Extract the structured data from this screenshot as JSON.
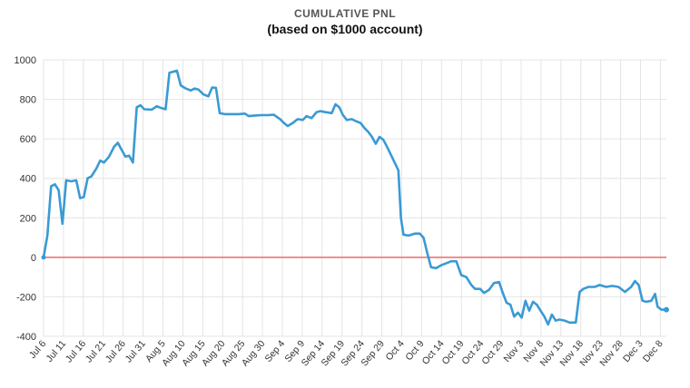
{
  "chart_data": {
    "type": "line",
    "title": "CUMULATIVE PNL",
    "subtitle": "(based on $1000 account)",
    "xlabel": "",
    "ylabel": "",
    "ylim": [
      -400,
      1000
    ],
    "yticks": [
      -400,
      -200,
      0,
      200,
      400,
      600,
      800,
      1000
    ],
    "x_tick_labels": [
      "Jul 6",
      "Jul 11",
      "Jul 16",
      "Jul 21",
      "Jul 26",
      "Jul 31",
      "Aug 5",
      "Aug 10",
      "Aug 15",
      "Aug 20",
      "Aug 25",
      "Aug 30",
      "Sep 4",
      "Sep 9",
      "Sep 14",
      "Sep 19",
      "Sep 24",
      "Sep 29",
      "Oct 4",
      "Oct 9",
      "Oct 14",
      "Oct 19",
      "Oct 24",
      "Oct 29",
      "Nov 3",
      "Nov 8",
      "Nov 13",
      "Nov 18",
      "Nov 23",
      "Nov 28",
      "Dec 3",
      "Dec 8"
    ],
    "grid": true,
    "reference_line": {
      "y": 0,
      "color": "#ef7f7f"
    },
    "series": [
      {
        "color": "#3a9ad4",
        "points": [
          [
            0,
            0
          ],
          [
            0.6,
            110
          ],
          [
            1.2,
            360
          ],
          [
            1.8,
            370
          ],
          [
            2.4,
            340
          ],
          [
            3.0,
            170
          ],
          [
            3.6,
            390
          ],
          [
            4.4,
            385
          ],
          [
            5.2,
            390
          ],
          [
            5.8,
            300
          ],
          [
            6.4,
            305
          ],
          [
            7.0,
            400
          ],
          [
            7.6,
            410
          ],
          [
            8.4,
            450
          ],
          [
            9.0,
            490
          ],
          [
            9.6,
            480
          ],
          [
            10.4,
            510
          ],
          [
            11.2,
            560
          ],
          [
            11.8,
            580
          ],
          [
            12.4,
            545
          ],
          [
            13.0,
            510
          ],
          [
            13.6,
            515
          ],
          [
            14.2,
            480
          ],
          [
            14.8,
            760
          ],
          [
            15.4,
            770
          ],
          [
            16.0,
            750
          ],
          [
            17.2,
            748
          ],
          [
            18.0,
            765
          ],
          [
            18.8,
            755
          ],
          [
            19.4,
            750
          ],
          [
            20.0,
            935
          ],
          [
            20.6,
            940
          ],
          [
            21.2,
            945
          ],
          [
            21.8,
            870
          ],
          [
            22.6,
            855
          ],
          [
            23.4,
            845
          ],
          [
            24.0,
            855
          ],
          [
            24.6,
            850
          ],
          [
            25.4,
            825
          ],
          [
            26.2,
            815
          ],
          [
            26.8,
            860
          ],
          [
            27.4,
            858
          ],
          [
            28.0,
            730
          ],
          [
            28.8,
            725
          ],
          [
            29.6,
            725
          ],
          [
            31.0,
            725
          ],
          [
            32.0,
            728
          ],
          [
            32.6,
            715
          ],
          [
            33.6,
            718
          ],
          [
            34.6,
            720
          ],
          [
            35.6,
            720
          ],
          [
            36.6,
            722
          ],
          [
            37.6,
            700
          ],
          [
            38.2,
            680
          ],
          [
            38.8,
            665
          ],
          [
            39.6,
            680
          ],
          [
            40.4,
            700
          ],
          [
            41.2,
            695
          ],
          [
            41.8,
            715
          ],
          [
            42.6,
            705
          ],
          [
            43.4,
            735
          ],
          [
            44.0,
            740
          ],
          [
            44.8,
            735
          ],
          [
            45.8,
            730
          ],
          [
            46.4,
            775
          ],
          [
            47.0,
            760
          ],
          [
            47.6,
            720
          ],
          [
            48.2,
            695
          ],
          [
            49.0,
            700
          ],
          [
            49.6,
            690
          ],
          [
            50.4,
            680
          ],
          [
            51.0,
            655
          ],
          [
            51.6,
            635
          ],
          [
            52.2,
            610
          ],
          [
            52.8,
            575
          ],
          [
            53.4,
            610
          ],
          [
            54.0,
            595
          ],
          [
            54.6,
            560
          ],
          [
            55.2,
            520
          ],
          [
            55.8,
            480
          ],
          [
            56.4,
            440
          ],
          [
            56.8,
            200
          ],
          [
            57.2,
            115
          ],
          [
            58.0,
            110
          ],
          [
            59.0,
            120
          ],
          [
            59.8,
            120
          ],
          [
            60.4,
            100
          ],
          [
            61.0,
            20
          ],
          [
            61.6,
            -50
          ],
          [
            62.4,
            -55
          ],
          [
            63.2,
            -40
          ],
          [
            64.0,
            -30
          ],
          [
            64.8,
            -20
          ],
          [
            65.6,
            -20
          ],
          [
            66.4,
            -90
          ],
          [
            67.2,
            -100
          ],
          [
            68.0,
            -140
          ],
          [
            68.6,
            -160
          ],
          [
            69.4,
            -160
          ],
          [
            70.0,
            -180
          ],
          [
            70.8,
            -165
          ],
          [
            71.6,
            -130
          ],
          [
            72.4,
            -125
          ],
          [
            73.0,
            -180
          ],
          [
            73.6,
            -230
          ],
          [
            74.2,
            -240
          ],
          [
            74.8,
            -300
          ],
          [
            75.4,
            -280
          ],
          [
            76.0,
            -305
          ],
          [
            76.6,
            -220
          ],
          [
            77.2,
            -270
          ],
          [
            77.8,
            -225
          ],
          [
            78.4,
            -240
          ],
          [
            79.0,
            -270
          ],
          [
            79.6,
            -300
          ],
          [
            80.2,
            -340
          ],
          [
            80.8,
            -290
          ],
          [
            81.4,
            -320
          ],
          [
            82.0,
            -315
          ],
          [
            82.8,
            -320
          ],
          [
            83.6,
            -330
          ],
          [
            84.6,
            -330
          ],
          [
            85.2,
            -175
          ],
          [
            85.8,
            -160
          ],
          [
            86.6,
            -150
          ],
          [
            87.6,
            -150
          ],
          [
            88.4,
            -140
          ],
          [
            89.4,
            -150
          ],
          [
            90.4,
            -145
          ],
          [
            91.4,
            -150
          ],
          [
            92.4,
            -175
          ],
          [
            93.4,
            -150
          ],
          [
            94.0,
            -120
          ],
          [
            94.6,
            -140
          ],
          [
            95.2,
            -220
          ],
          [
            95.8,
            -225
          ],
          [
            96.6,
            -220
          ],
          [
            97.2,
            -185
          ],
          [
            97.6,
            -250
          ],
          [
            98.2,
            -265
          ],
          [
            99.0,
            -265
          ]
        ]
      }
    ]
  }
}
